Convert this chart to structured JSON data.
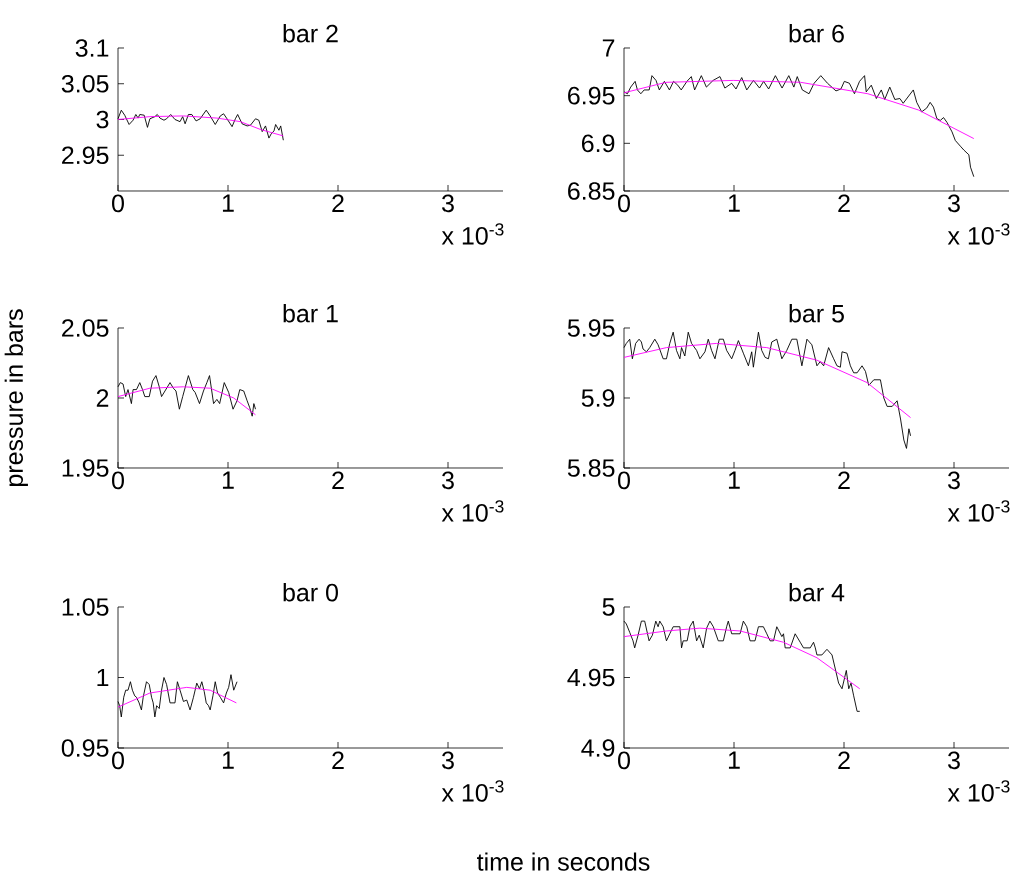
{
  "chart_data": [
    {
      "type": "line",
      "title": "bar 2",
      "xlim": [
        0,
        3.5
      ],
      "ylim": [
        2.9,
        3.1
      ],
      "xticks": [
        0,
        1,
        2,
        3
      ],
      "yticks": [
        2.95,
        3,
        3.05,
        3.1
      ],
      "annotations": [
        "x 10$^{-3}$"
      ],
      "series": [
        {
          "color": "#000000",
          "x": [
            0,
            0.03,
            0.061,
            0.101,
            0.137,
            0.162,
            0.183,
            0.198,
            0.238,
            0.268,
            0.29,
            0.335,
            0.357,
            0.381,
            0.418,
            0.442,
            0.479,
            0.518,
            0.564,
            0.588,
            0.61,
            0.64,
            0.671,
            0.71,
            0.747,
            0.802,
            0.838,
            0.884,
            0.93,
            0.96,
            0.991,
            1.037,
            1.067,
            1.088,
            1.128,
            1.174,
            1.204,
            1.25,
            1.28,
            1.311,
            1.341,
            1.372,
            1.393,
            1.418,
            1.433,
            1.463,
            1.479,
            1.503
          ],
          "values": [
            3.001,
            3.013,
            3.006,
            2.993,
            2.999,
            3.007,
            3.002,
            3.007,
            3.006,
            2.989,
            3.001,
            3.004,
            3.007,
            3.002,
            2.999,
            3.001,
            3.007,
            3.0,
            2.997,
            3.004,
            2.994,
            3.007,
            3.007,
            2.998,
            3.001,
            3.013,
            3.005,
            2.993,
            3.005,
            3.008,
            3.001,
            2.99,
            3.001,
            3.007,
            2.994,
            2.991,
            2.992,
            3.001,
            2.999,
            2.983,
            2.991,
            2.974,
            2.98,
            2.984,
            2.993,
            2.985,
            2.991,
            2.971
          ]
        },
        {
          "color": "#ff00ff",
          "x": [
            0,
            0.29,
            0.595,
            0.899,
            1.113,
            1.296,
            1.503
          ],
          "values": [
            3.0,
            3.004,
            3.005,
            3.002,
            2.997,
            2.986,
            2.977
          ]
        }
      ]
    },
    {
      "type": "line",
      "title": "bar 6",
      "xlim": [
        0,
        3.5
      ],
      "ylim": [
        6.85,
        7
      ],
      "xticks": [
        0,
        1,
        2,
        3
      ],
      "yticks": [
        6.85,
        6.9,
        6.95,
        7
      ],
      "annotations": [
        "x 10$^{-3}$"
      ],
      "series": [
        {
          "color": "#000000",
          "x": [
            0,
            0.031,
            0.061,
            0.101,
            0.122,
            0.153,
            0.183,
            0.229,
            0.254,
            0.291,
            0.321,
            0.367,
            0.413,
            0.45,
            0.489,
            0.52,
            0.572,
            0.612,
            0.642,
            0.703,
            0.749,
            0.81,
            0.872,
            0.917,
            0.979,
            1.018,
            1.07,
            1.116,
            1.177,
            1.232,
            1.269,
            1.315,
            1.376,
            1.437,
            1.498,
            1.544,
            1.575,
            1.621,
            1.682,
            1.728,
            1.789,
            1.85,
            1.927,
            1.972,
            2.003,
            2.049,
            2.095,
            2.141,
            2.187,
            2.202,
            2.248,
            2.294,
            2.339,
            2.37,
            2.416,
            2.462,
            2.508,
            2.538,
            2.584,
            2.63,
            2.661,
            2.706,
            2.752,
            2.783,
            2.813,
            2.844,
            2.875,
            2.905,
            2.936,
            2.982,
            3.012,
            3.058,
            3.089,
            3.135,
            3.15,
            3.18
          ],
          "values": [
            6.954,
            6.952,
            6.959,
            6.965,
            6.956,
            6.952,
            6.956,
            6.956,
            6.971,
            6.966,
            6.956,
            6.965,
            6.956,
            6.965,
            6.961,
            6.956,
            6.965,
            6.97,
            6.956,
            6.971,
            6.959,
            6.966,
            6.97,
            6.958,
            6.963,
            6.957,
            6.969,
            6.956,
            6.966,
            6.958,
            6.965,
            6.957,
            6.971,
            6.958,
            6.971,
            6.959,
            6.97,
            6.956,
            6.952,
            6.963,
            6.971,
            6.963,
            6.955,
            6.957,
            6.965,
            6.963,
            6.952,
            6.965,
            6.971,
            6.954,
            6.961,
            6.947,
            6.956,
            6.946,
            6.959,
            6.946,
            6.947,
            6.942,
            6.949,
            6.956,
            6.943,
            6.933,
            6.937,
            6.943,
            6.938,
            6.926,
            6.924,
            6.927,
            6.922,
            6.912,
            6.903,
            6.897,
            6.893,
            6.888,
            6.875,
            6.865
          ]
        },
        {
          "color": "#ff00ff",
          "x": [
            0,
            0.382,
            0.994,
            1.606,
            2.217,
            2.676,
            3.18
          ],
          "values": [
            6.953,
            6.964,
            6.966,
            6.964,
            6.952,
            6.935,
            6.905
          ]
        }
      ]
    },
    {
      "type": "line",
      "title": "bar 1",
      "ylabel": "pressure in bars",
      "xlim": [
        0,
        3.5
      ],
      "ylim": [
        1.95,
        2.05
      ],
      "xticks": [
        0,
        1,
        2,
        3
      ],
      "yticks": [
        1.95,
        2,
        2.05
      ],
      "annotations": [
        "x 10$^{-3}$"
      ],
      "series": [
        {
          "color": "#000000",
          "x": [
            0,
            0.021,
            0.046,
            0.07,
            0.091,
            0.122,
            0.137,
            0.168,
            0.198,
            0.223,
            0.244,
            0.284,
            0.314,
            0.345,
            0.375,
            0.396,
            0.427,
            0.473,
            0.503,
            0.527,
            0.558,
            0.588,
            0.64,
            0.68,
            0.701,
            0.741,
            0.777,
            0.808,
            0.832,
            0.869,
            0.899,
            0.924,
            0.966,
            1.006,
            1.046,
            1.082,
            1.107,
            1.143,
            1.174,
            1.198,
            1.22,
            1.235,
            1.25
          ],
          "values": [
            2.008,
            2.011,
            2.01,
            2.001,
            2.006,
            1.996,
            2.006,
            2.006,
            2.011,
            2.006,
            2.001,
            2.001,
            2.012,
            2.016,
            2.008,
            2.001,
            2.005,
            2.011,
            2.007,
            2.005,
            1.992,
            2.001,
            2.016,
            2.006,
            2.004,
            1.996,
            2.005,
            2.011,
            2.016,
            1.996,
            1.999,
            1.996,
            2.011,
            2.004,
            1.992,
            1.998,
            2.006,
            2.005,
            1.998,
            1.993,
            1.987,
            1.996,
            1.992
          ]
        },
        {
          "color": "#ff00ff",
          "x": [
            0,
            0.29,
            0.595,
            0.838,
            1.052,
            1.25
          ],
          "values": [
            2.001,
            2.007,
            2.008,
            2.007,
            2.0,
            1.988
          ]
        }
      ]
    },
    {
      "type": "line",
      "title": "bar 5",
      "xlim": [
        0,
        3.5
      ],
      "ylim": [
        5.85,
        5.95
      ],
      "xticks": [
        0,
        1,
        2,
        3
      ],
      "yticks": [
        5.85,
        5.9,
        5.95
      ],
      "annotations": [
        "x 10$^{-3}$"
      ],
      "series": [
        {
          "color": "#000000",
          "x": [
            0,
            0.021,
            0.052,
            0.076,
            0.106,
            0.137,
            0.158,
            0.173,
            0.204,
            0.234,
            0.28,
            0.31,
            0.356,
            0.386,
            0.416,
            0.447,
            0.477,
            0.508,
            0.523,
            0.553,
            0.584,
            0.614,
            0.66,
            0.69,
            0.736,
            0.766,
            0.796,
            0.827,
            0.866,
            0.903,
            0.933,
            0.979,
            1.009,
            1.04,
            1.085,
            1.131,
            1.161,
            1.176,
            1.222,
            1.252,
            1.283,
            1.313,
            1.343,
            1.389,
            1.435,
            1.48,
            1.526,
            1.571,
            1.617,
            1.663,
            1.708,
            1.754,
            1.784,
            1.815,
            1.86,
            1.906,
            1.936,
            1.967,
            1.982,
            2.027,
            2.058,
            2.088,
            2.119,
            2.164,
            2.195,
            2.225,
            2.271,
            2.331,
            2.362,
            2.392,
            2.438,
            2.483,
            2.514,
            2.544,
            2.568,
            2.59,
            2.605
          ],
          "values": [
            5.936,
            5.939,
            5.942,
            5.928,
            5.939,
            5.942,
            5.94,
            5.935,
            5.933,
            5.936,
            5.942,
            5.938,
            5.928,
            5.928,
            5.939,
            5.947,
            5.934,
            5.928,
            5.936,
            5.93,
            5.947,
            5.939,
            5.934,
            5.928,
            5.933,
            5.942,
            5.934,
            5.928,
            5.942,
            5.942,
            5.934,
            5.928,
            5.934,
            5.941,
            5.932,
            5.923,
            5.933,
            5.922,
            5.947,
            5.934,
            5.929,
            5.928,
            5.94,
            5.942,
            5.928,
            5.934,
            5.942,
            5.942,
            5.923,
            5.942,
            5.938,
            5.923,
            5.926,
            5.923,
            5.936,
            5.928,
            5.923,
            5.922,
            5.933,
            5.932,
            5.923,
            5.918,
            5.918,
            5.923,
            5.919,
            5.909,
            5.913,
            5.913,
            5.9,
            5.894,
            5.894,
            5.898,
            5.885,
            5.87,
            5.864,
            5.878,
            5.873
          ]
        },
        {
          "color": "#ff00ff",
          "x": [
            0,
            0.386,
            0.842,
            1.298,
            1.754,
            2.21,
            2.605
          ],
          "values": [
            5.929,
            5.936,
            5.939,
            5.936,
            5.927,
            5.911,
            5.886
          ]
        }
      ]
    },
    {
      "type": "line",
      "title": "bar 0",
      "xlabel": "time in seconds",
      "xlim": [
        0,
        3.5
      ],
      "ylim": [
        0.95,
        1.05
      ],
      "xticks": [
        0,
        1,
        2,
        3
      ],
      "yticks": [
        0.95,
        1,
        1.05
      ],
      "annotations": [
        "x 10$^{-3}$"
      ],
      "series": [
        {
          "color": "#000000",
          "x": [
            0,
            0.015,
            0.03,
            0.052,
            0.07,
            0.091,
            0.113,
            0.131,
            0.152,
            0.168,
            0.192,
            0.213,
            0.229,
            0.259,
            0.284,
            0.305,
            0.32,
            0.335,
            0.351,
            0.375,
            0.396,
            0.418,
            0.442,
            0.473,
            0.518,
            0.54,
            0.564,
            0.595,
            0.625,
            0.655,
            0.686,
            0.716,
            0.741,
            0.762,
            0.784,
            0.802,
            0.823,
            0.838,
            0.863,
            0.884,
            0.905,
            0.93,
            0.96,
            0.985,
            1.006,
            1.027,
            1.052,
            1.082
          ],
          "values": [
            0.983,
            0.98,
            0.972,
            0.986,
            0.991,
            0.991,
            0.997,
            0.991,
            0.987,
            0.986,
            0.982,
            0.977,
            0.986,
            0.997,
            0.995,
            0.986,
            0.982,
            0.972,
            0.98,
            0.978,
            0.991,
            1.0,
            0.995,
            0.982,
            0.982,
            0.997,
            0.991,
            0.983,
            0.984,
            0.977,
            0.986,
            0.996,
            0.992,
            0.997,
            0.99,
            0.982,
            0.98,
            0.977,
            0.987,
            0.997,
            0.989,
            0.986,
            0.982,
            0.989,
            0.993,
            1.002,
            0.991,
            0.997
          ]
        },
        {
          "color": "#ff00ff",
          "x": [
            0,
            0.29,
            0.625,
            0.838,
            1.076
          ],
          "values": [
            0.979,
            0.989,
            0.993,
            0.991,
            0.982
          ]
        }
      ]
    },
    {
      "type": "line",
      "title": "bar 4",
      "xlim": [
        0,
        3.5
      ],
      "ylim": [
        4.9,
        5
      ],
      "xticks": [
        0,
        1,
        2,
        3
      ],
      "yticks": [
        4.9,
        4.95,
        5
      ],
      "annotations": [
        "x 10$^{-3}$"
      ],
      "series": [
        {
          "color": "#000000",
          "x": [
            0,
            0.021,
            0.052,
            0.082,
            0.097,
            0.128,
            0.158,
            0.188,
            0.228,
            0.258,
            0.289,
            0.31,
            0.325,
            0.356,
            0.386,
            0.416,
            0.447,
            0.508,
            0.523,
            0.538,
            0.574,
            0.599,
            0.629,
            0.66,
            0.684,
            0.72,
            0.751,
            0.781,
            0.812,
            0.857,
            0.903,
            0.933,
            0.948,
            0.979,
            1.009,
            1.055,
            1.085,
            1.116,
            1.146,
            1.191,
            1.222,
            1.267,
            1.298,
            1.328,
            1.359,
            1.389,
            1.435,
            1.45,
            1.465,
            1.511,
            1.556,
            1.602,
            1.632,
            1.693,
            1.723,
            1.739,
            1.754,
            1.799,
            1.845,
            1.891,
            1.921,
            1.951,
            1.982,
            2.021,
            2.043,
            2.064,
            2.088,
            2.119,
            2.143
          ],
          "values": [
            4.99,
            4.988,
            4.982,
            4.976,
            4.971,
            4.98,
            4.99,
            4.99,
            4.976,
            4.98,
            4.99,
            4.986,
            4.99,
            4.986,
            4.976,
            4.981,
            4.986,
            4.986,
            4.971,
            4.976,
            4.976,
            4.986,
            4.99,
            4.976,
            4.98,
            4.971,
            4.985,
            4.99,
            4.986,
            4.976,
            4.976,
            4.986,
            4.99,
            4.981,
            4.981,
            4.981,
            4.99,
            4.986,
            4.976,
            4.976,
            4.986,
            4.986,
            4.981,
            4.976,
            4.976,
            4.986,
            4.979,
            4.981,
            4.971,
            4.971,
            4.981,
            4.975,
            4.971,
            4.971,
            4.975,
            4.971,
            4.966,
            4.966,
            4.97,
            4.966,
            4.956,
            4.946,
            4.942,
            4.955,
            4.942,
            4.946,
            4.937,
            4.926,
            4.926
          ]
        },
        {
          "color": "#ff00ff",
          "x": [
            0,
            0.386,
            0.69,
            1.055,
            1.45,
            1.754,
            2.143
          ],
          "values": [
            4.979,
            4.983,
            4.985,
            4.983,
            4.975,
            4.964,
            4.942
          ]
        }
      ]
    }
  ]
}
